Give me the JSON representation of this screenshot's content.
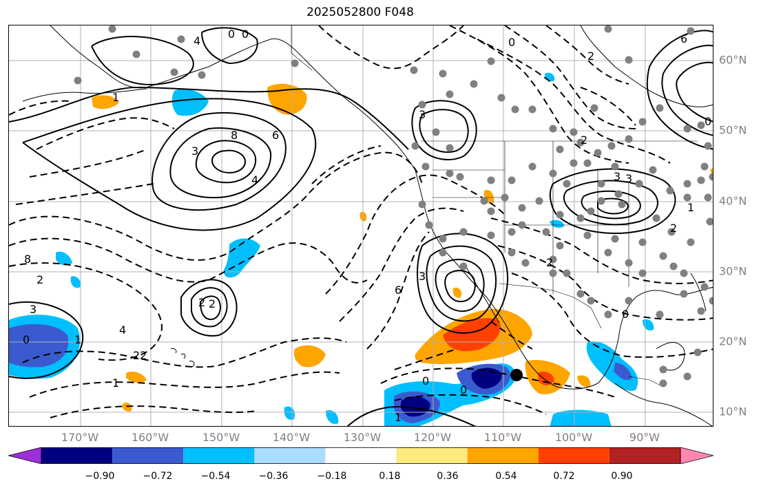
{
  "title": "2025052800 F048",
  "lat_labels": [
    "60°N",
    "50°N",
    "40°N",
    "30°N",
    "20°N",
    "10°N"
  ],
  "lon_labels": [
    "170°W",
    "160°W",
    "150°W",
    "140°W",
    "130°W",
    "120°W",
    "110°W",
    "100°W",
    "90°W"
  ],
  "colorbar": {
    "colors": [
      "#9b30d9",
      "#000080",
      "#3a5bd0",
      "#00bfff",
      "#aadcff",
      "#ffffff",
      "#ffea80",
      "#ffa500",
      "#ff4000",
      "#b22222",
      "#ff88b0"
    ],
    "tick_labels": [
      "−0.90",
      "−0.72",
      "−0.54",
      "−0.36",
      "−0.18",
      "0.18",
      "0.36",
      "0.54",
      "0.72",
      "0.90"
    ]
  },
  "contour_labels": [
    "4",
    "0",
    "0",
    "1",
    "3",
    "8",
    "6",
    "4",
    "3",
    "2",
    "3",
    "3",
    "6",
    "3",
    "4",
    "2",
    "2",
    "3",
    "0",
    "2",
    "1",
    "2",
    "1",
    "0",
    "0",
    "1",
    "2",
    "0",
    "2",
    "1",
    "0",
    "0",
    "2",
    "6",
    "8",
    "2"
  ],
  "colors": {
    "dots": "#808080",
    "neg_dark": "#000080",
    "neg_mid": "#3a5bd0",
    "neg_light": "#00bfff",
    "pos_light": "#ffa500",
    "pos_mid": "#ff4000"
  }
}
